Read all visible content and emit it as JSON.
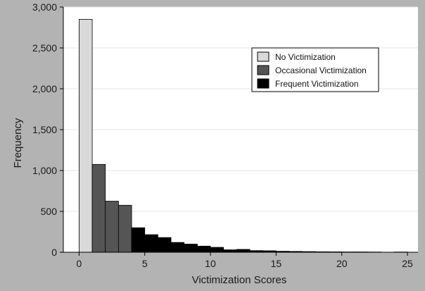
{
  "chart_data": {
    "type": "bar",
    "title": "",
    "xlabel": "Victimization Scores",
    "ylabel": "Frequency",
    "xlim": [
      -1.2,
      25.8
    ],
    "ylim": [
      0,
      3000
    ],
    "xticks": [
      0,
      5,
      10,
      15,
      20,
      25
    ],
    "yticks": [
      0,
      500,
      1000,
      1500,
      2000,
      2500,
      3000
    ],
    "ytick_labels": [
      "0",
      "500",
      "1,000",
      "1,500",
      "2,000",
      "2,500",
      "3,000"
    ],
    "grid": "horizontal",
    "legend_position": "top-right",
    "bin_width": 1,
    "series": [
      {
        "name": "No Victimization",
        "color": "#d9d9d9",
        "bins": [
          {
            "x": 0,
            "value": 2850
          }
        ]
      },
      {
        "name": "Occasional Victimization",
        "color": "#555555",
        "bins": [
          {
            "x": 1,
            "value": 1075
          },
          {
            "x": 2,
            "value": 625
          },
          {
            "x": 3,
            "value": 575
          }
        ]
      },
      {
        "name": "Frequent Victimization",
        "color": "#000000",
        "bins": [
          {
            "x": 4,
            "value": 300
          },
          {
            "x": 5,
            "value": 215
          },
          {
            "x": 6,
            "value": 180
          },
          {
            "x": 7,
            "value": 120
          },
          {
            "x": 8,
            "value": 100
          },
          {
            "x": 9,
            "value": 75
          },
          {
            "x": 10,
            "value": 60
          },
          {
            "x": 11,
            "value": 30
          },
          {
            "x": 12,
            "value": 35
          },
          {
            "x": 13,
            "value": 20
          },
          {
            "x": 14,
            "value": 18
          },
          {
            "x": 15,
            "value": 12
          },
          {
            "x": 16,
            "value": 10
          },
          {
            "x": 17,
            "value": 8
          },
          {
            "x": 18,
            "value": 6
          },
          {
            "x": 19,
            "value": 5
          },
          {
            "x": 20,
            "value": 4
          },
          {
            "x": 21,
            "value": 4
          },
          {
            "x": 22,
            "value": 3
          },
          {
            "x": 24,
            "value": 3
          }
        ]
      }
    ]
  }
}
